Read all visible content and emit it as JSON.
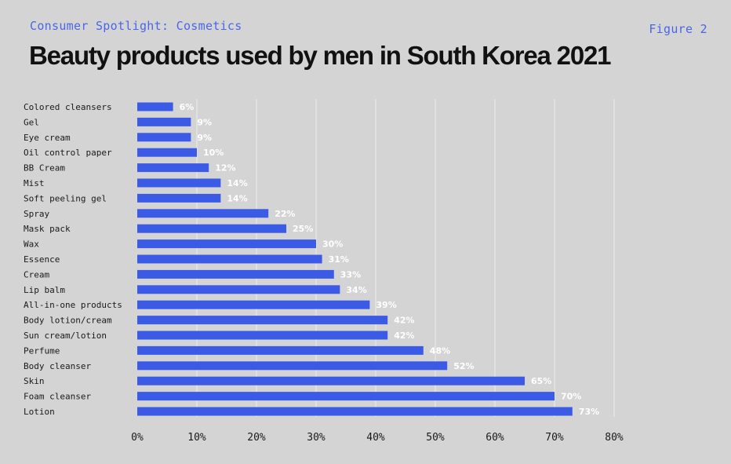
{
  "header": {
    "kicker": "Consumer Spotlight: Cosmetics",
    "figure": "Figure 2",
    "title": "Beauty products used by men in South Korea 2021"
  },
  "colors": {
    "bar": "#3b5be7",
    "accent": "#4a66e8",
    "background": "#d4d4d4"
  },
  "chart_data": {
    "type": "bar",
    "orientation": "horizontal",
    "title": "Beauty products used by men in South Korea 2021",
    "categories": [
      "Colored cleansers",
      "Gel",
      "Eye cream",
      "Oil control paper",
      "BB Cream",
      "Mist",
      "Soft peeling gel",
      "Spray",
      "Mask pack",
      "Wax",
      "Essence",
      "Cream",
      "Lip balm",
      "All-in-one products",
      "Body lotion/cream",
      "Sun cream/lotion",
      "Perfume",
      "Body cleanser",
      "Skin",
      "Foam cleanser",
      "Lotion"
    ],
    "values": [
      6,
      9,
      9,
      10,
      12,
      14,
      14,
      22,
      25,
      30,
      31,
      33,
      34,
      39,
      42,
      42,
      48,
      52,
      65,
      70,
      73
    ],
    "value_labels": [
      "6%",
      "9%",
      "9%",
      "10%",
      "12%",
      "14%",
      "14%",
      "22%",
      "25%",
      "30%",
      "31%",
      "33%",
      "34%",
      "39%",
      "42%",
      "42%",
      "48%",
      "52%",
      "65%",
      "70%",
      "73%"
    ],
    "xlim": [
      0,
      80
    ],
    "xticks": [
      0,
      10,
      20,
      30,
      40,
      50,
      60,
      70,
      80
    ],
    "xtick_labels": [
      "0%",
      "10%",
      "20%",
      "30%",
      "40%",
      "50%",
      "60%",
      "70%",
      "80%"
    ],
    "grid": true
  }
}
